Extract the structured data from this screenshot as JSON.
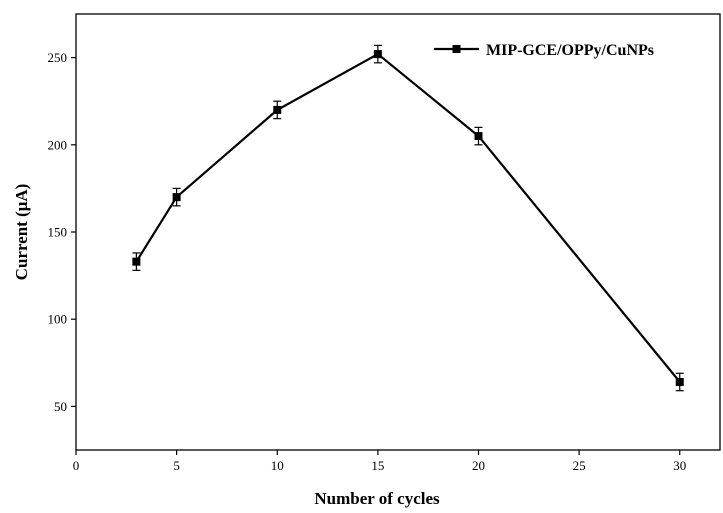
{
  "chart_data": {
    "type": "line",
    "xlabel": "Number of cycles",
    "ylabel": "Current (μA)",
    "xlim": [
      0,
      32
    ],
    "ylim": [
      25,
      275
    ],
    "xticks": [
      0,
      5,
      10,
      15,
      20,
      25,
      30
    ],
    "yticks": [
      50,
      100,
      150,
      200,
      250
    ],
    "grid": false,
    "legend_position": "top-right",
    "series": [
      {
        "name": "MIP-GCE/OPPy/CuNPs",
        "color": "#000000",
        "marker": "square",
        "x": [
          3,
          5,
          10,
          15,
          20,
          30
        ],
        "y": [
          133,
          170,
          220,
          252,
          205,
          64
        ],
        "error": [
          5,
          5,
          5,
          5,
          5,
          5
        ]
      }
    ]
  }
}
